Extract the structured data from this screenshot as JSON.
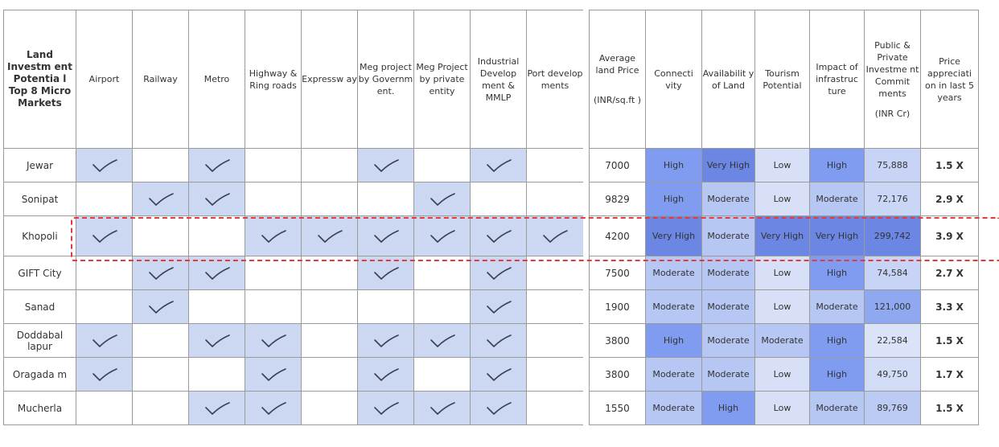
{
  "left_headers": [
    "Land Investm ent Potentia l Top 8 Micro Markets",
    "Airport",
    "Railway",
    "Metro",
    "Highway & Ring roads",
    "Expressw ay",
    "Meg project by Governm ent.",
    "Meg Project by private entity",
    "Industrial Develop ment & MMLP",
    "Port develop ments"
  ],
  "right_headers": [
    {
      "main": "Average land Price",
      "unit": "(INR/sq.ft )"
    },
    {
      "main": "Connecti vity",
      "unit": ""
    },
    {
      "main": "Availabilit y of Land",
      "unit": ""
    },
    {
      "main": "Tourism Potential",
      "unit": ""
    },
    {
      "main": "Impact of infrastruc ture",
      "unit": ""
    },
    {
      "main": "Public & Private Investme nt Commit ments",
      "unit": "(INR Cr)"
    },
    {
      "main": "Price appreciati on in last 5 years",
      "unit": ""
    }
  ],
  "rows": [
    {
      "name": "Jewar",
      "checks": [
        1,
        0,
        1,
        0,
        0,
        1,
        0,
        1,
        0
      ],
      "price": "7000",
      "connectivity": "High",
      "availability": "Very High",
      "tourism": "Low",
      "impact": "High",
      "investment": "75,888",
      "appreciation": "1.5 X"
    },
    {
      "name": "Sonipat",
      "checks": [
        0,
        1,
        1,
        0,
        0,
        0,
        1,
        0,
        0
      ],
      "price": "9829",
      "connectivity": "High",
      "availability": "Moderate",
      "tourism": "Low",
      "impact": "Moderate",
      "investment": "72,176",
      "appreciation": "2.9 X"
    },
    {
      "name": "Khopoli",
      "checks": [
        1,
        0,
        0,
        1,
        1,
        1,
        1,
        1,
        1
      ],
      "price": "4200",
      "connectivity": "Very High",
      "availability": "Moderate",
      "tourism": "Very High",
      "impact": "Very High",
      "investment": "299,742",
      "appreciation": "3.9 X"
    },
    {
      "name": "GIFT City",
      "checks": [
        0,
        1,
        1,
        0,
        0,
        1,
        0,
        1,
        0
      ],
      "price": "7500",
      "connectivity": "Moderate",
      "availability": "Moderate",
      "tourism": "Low",
      "impact": "High",
      "investment": "74,584",
      "appreciation": "2.7 X"
    },
    {
      "name": "Sanad",
      "checks": [
        0,
        1,
        0,
        0,
        0,
        0,
        0,
        1,
        0
      ],
      "price": "1900",
      "connectivity": "Moderate",
      "availability": "Moderate",
      "tourism": "Low",
      "impact": "Moderate",
      "investment": "121,000",
      "appreciation": "3.3 X"
    },
    {
      "name": "Doddabal lapur",
      "checks": [
        1,
        0,
        1,
        1,
        0,
        1,
        1,
        1,
        0
      ],
      "price": "3800",
      "connectivity": "High",
      "availability": "Moderate",
      "tourism": "Moderate",
      "impact": "High",
      "investment": "22,584",
      "appreciation": "1.5 X"
    },
    {
      "name": "Oragada m",
      "checks": [
        1,
        0,
        0,
        1,
        0,
        1,
        0,
        1,
        0
      ],
      "price": "3800",
      "connectivity": "Moderate",
      "availability": "Moderate",
      "tourism": "Low",
      "impact": "High",
      "investment": "49,750",
      "appreciation": "1.7 X"
    },
    {
      "name": "Mucherla",
      "checks": [
        0,
        0,
        1,
        1,
        0,
        1,
        1,
        1,
        0
      ],
      "price": "1550",
      "connectivity": "Moderate",
      "availability": "High",
      "tourism": "Low",
      "impact": "Moderate",
      "investment": "89,769",
      "appreciation": "1.5 X"
    }
  ],
  "level_colors": {
    "Very High": "#6b86e3",
    "High": "#7f9cf0",
    "Moderate": "#b7c7f4",
    "Low": "#d8e0f8"
  },
  "investment_colors": {
    "299,742": "#6b86e3",
    "121,000": "#8fa8ef",
    "89,769": "#bccbf3",
    "75,888": "#c7d4f5",
    "74,584": "#c8d4f5",
    "72,176": "#cad6f6",
    "49,750": "#d2dcf6",
    "22,584": "#dbe3f8"
  },
  "highlight_row": "Khopoli",
  "highlight_color": "#e33b3b"
}
